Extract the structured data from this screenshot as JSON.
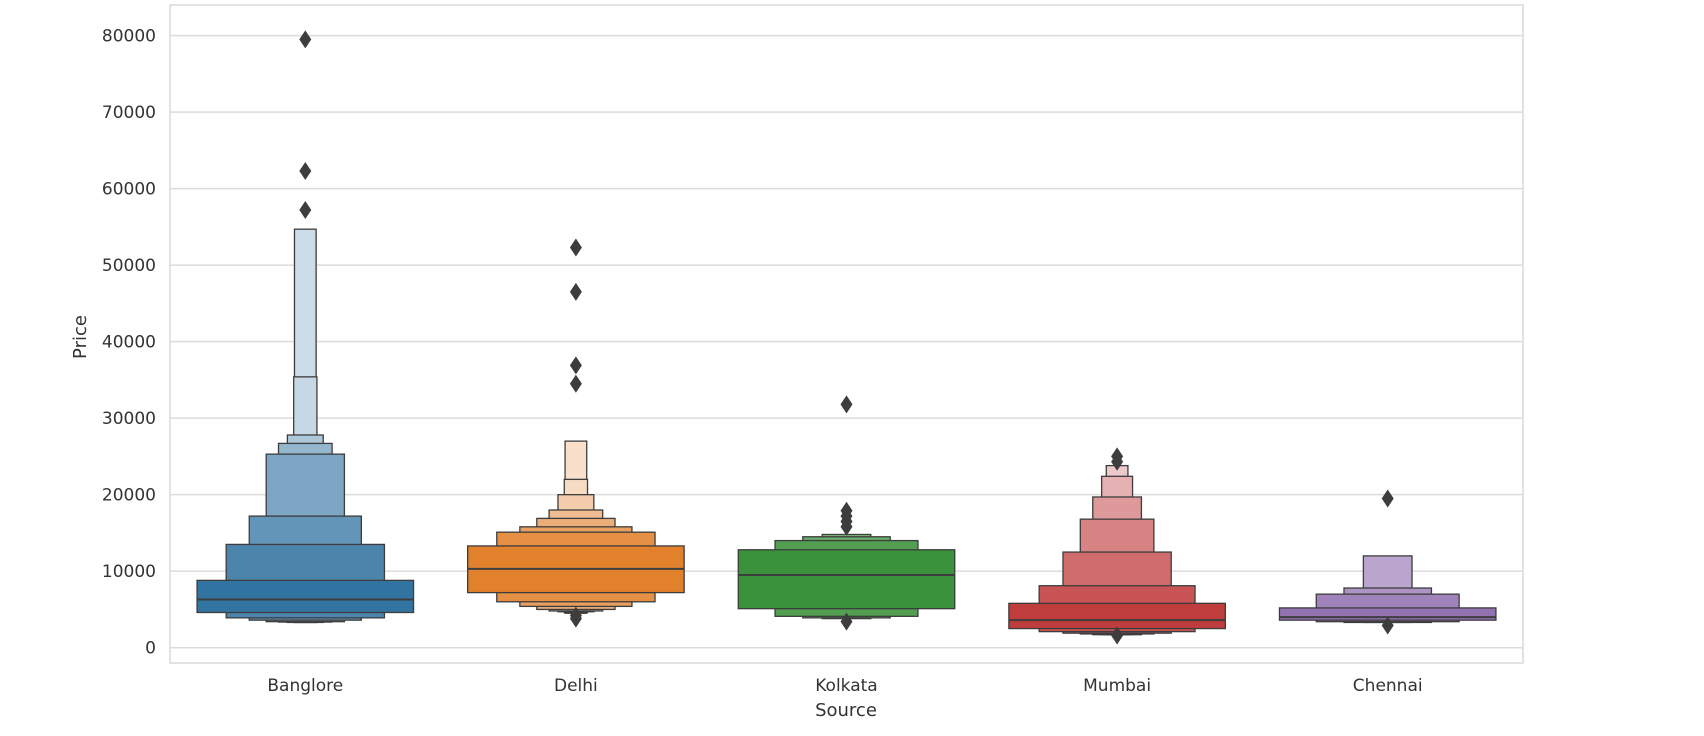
{
  "chart_data": {
    "type": "boxen",
    "title": "",
    "xlabel": "Source",
    "ylabel": "Price",
    "ylim": [
      -2000,
      84000
    ],
    "yticks": [
      0,
      10000,
      20000,
      30000,
      40000,
      50000,
      60000,
      70000,
      80000
    ],
    "ytick_labels": [
      "0",
      "10000",
      "20000",
      "30000",
      "40000",
      "50000",
      "60000",
      "70000",
      "80000"
    ],
    "grid": true,
    "categories": [
      "Banglore",
      "Delhi",
      "Kolkata",
      "Mumbai",
      "Chennai"
    ],
    "series": [
      {
        "name": "Banglore",
        "color": "#3274a1",
        "median": 6300,
        "levels": [
          [
            4600,
            8800
          ],
          [
            3900,
            13500
          ],
          [
            3600,
            17200
          ],
          [
            3400,
            25300
          ],
          [
            3350,
            26700
          ],
          [
            3300,
            27800
          ],
          [
            3300,
            35400
          ],
          [
            3300,
            54700
          ]
        ],
        "outliers": [
          57200,
          62300,
          79500
        ]
      },
      {
        "name": "Delhi",
        "color": "#e1812c",
        "median": 10300,
        "levels": [
          [
            7200,
            13300
          ],
          [
            6000,
            15100
          ],
          [
            5400,
            15800
          ],
          [
            5000,
            16900
          ],
          [
            4800,
            18000
          ],
          [
            4700,
            20000
          ],
          [
            4600,
            22000
          ],
          [
            4500,
            27000
          ]
        ],
        "outliers": [
          3800,
          4200,
          34500,
          36900,
          46500,
          52300
        ]
      },
      {
        "name": "Kolkata",
        "color": "#3a923a",
        "median": 9500,
        "levels": [
          [
            5100,
            12800
          ],
          [
            4100,
            14000
          ],
          [
            3900,
            14500
          ],
          [
            3800,
            14800
          ]
        ],
        "outliers": [
          3400,
          15800,
          16500,
          17200,
          17900,
          31800
        ]
      },
      {
        "name": "Mumbai",
        "color": "#c03d3e",
        "median": 3600,
        "levels": [
          [
            2500,
            5800
          ],
          [
            2100,
            8100
          ],
          [
            1900,
            12500
          ],
          [
            1800,
            16800
          ],
          [
            1700,
            19700
          ],
          [
            1700,
            22400
          ],
          [
            1700,
            23800
          ]
        ],
        "outliers": [
          1600,
          24300,
          25000
        ]
      },
      {
        "name": "Chennai",
        "color": "#9372b2",
        "median": 4000,
        "levels": [
          [
            3600,
            5200
          ],
          [
            3400,
            7000
          ],
          [
            3300,
            7800
          ],
          [
            3300,
            12000
          ]
        ],
        "outliers": [
          2900,
          19500
        ]
      }
    ]
  }
}
